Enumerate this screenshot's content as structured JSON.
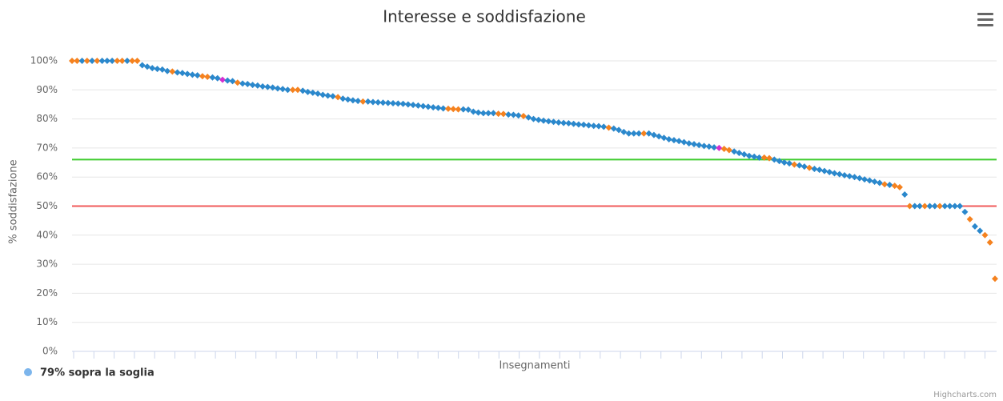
{
  "chart_data": {
    "type": "scatter",
    "title": "Interesse e soddisfazione",
    "y_label": "% soddisfazione",
    "x_label": "Insegnamenti",
    "credits": "Highcharts.com",
    "ylim": [
      0,
      100
    ],
    "yticks": [
      {
        "value": 0,
        "label": "0%"
      },
      {
        "value": 10,
        "label": "10%"
      },
      {
        "value": 20,
        "label": "20%"
      },
      {
        "value": 30,
        "label": "30%"
      },
      {
        "value": 40,
        "label": "40%"
      },
      {
        "value": 50,
        "label": "50%"
      },
      {
        "value": 60,
        "label": "60%"
      },
      {
        "value": 70,
        "label": "70%"
      },
      {
        "value": 80,
        "label": "80%"
      },
      {
        "value": 90,
        "label": "90%"
      },
      {
        "value": 100,
        "label": "100%"
      }
    ],
    "grid": true,
    "plot_lines": [
      {
        "value": 66,
        "color": "#3fcc2f"
      },
      {
        "value": 50,
        "color": "#f05a5a"
      }
    ],
    "series": [
      {
        "name": "79% sopra la soglia",
        "color": "#7cb5ec",
        "values": [
          100,
          100,
          100,
          100,
          100,
          100,
          100,
          100,
          100,
          100,
          100,
          100,
          100,
          100,
          98.5,
          98,
          97.5,
          97.2,
          97,
          96.5,
          96.3,
          96,
          95.8,
          95.5,
          95.2,
          95,
          94.7,
          94.5,
          94.3,
          94,
          93.5,
          93.2,
          93,
          92.5,
          92.2,
          92,
          91.7,
          91.5,
          91.2,
          91,
          90.8,
          90.5,
          90.3,
          90,
          90,
          90,
          89.7,
          89.3,
          89,
          88.7,
          88.3,
          88,
          87.8,
          87.5,
          87,
          86.7,
          86.4,
          86.2,
          86,
          86,
          85.8,
          85.7,
          85.6,
          85.5,
          85.4,
          85.3,
          85.2,
          85,
          84.8,
          84.6,
          84.4,
          84.2,
          84,
          83.8,
          83.6,
          83.5,
          83.4,
          83.3,
          83.3,
          83.2,
          82.5,
          82.2,
          82,
          82,
          82,
          81.8,
          81.7,
          81.5,
          81.4,
          81.2,
          81,
          80.5,
          80,
          79.7,
          79.4,
          79.2,
          79,
          78.8,
          78.6,
          78.5,
          78.3,
          78.1,
          78,
          77.8,
          77.6,
          77.5,
          77.3,
          77,
          76.7,
          76.2,
          75.5,
          75,
          75,
          75,
          75,
          75,
          74.5,
          74,
          73.5,
          73,
          72.7,
          72.4,
          72,
          71.6,
          71.3,
          71,
          70.7,
          70.5,
          70.2,
          70,
          69.7,
          69.3,
          68.8,
          68.3,
          67.8,
          67.3,
          67,
          66.7,
          66.7,
          66.5,
          66,
          65.5,
          65,
          64.7,
          64.3,
          64,
          63.6,
          63.2,
          62.8,
          62.5,
          62.1,
          61.7,
          61.3,
          61,
          60.6,
          60.3,
          60,
          59.6,
          59.2,
          58.8,
          58.4,
          58,
          57.5,
          57.3,
          57,
          56.5,
          54,
          50,
          50,
          50,
          50,
          50,
          50,
          50,
          50,
          50,
          50,
          50,
          48,
          45.5,
          43,
          41.5,
          40,
          37.5,
          25
        ],
        "point_colors": [
          "#f5821f",
          "#f5821f",
          "#2b88cc",
          "#f5821f",
          "#2b88cc",
          "#f5821f",
          "#2b88cc",
          "#2b88cc",
          "#2b88cc",
          "#f5821f",
          "#f5821f",
          "#2b88cc",
          "#f5821f",
          "#f5821f",
          "#2b88cc",
          "#2b88cc",
          "#2b88cc",
          "#2b88cc",
          "#2b88cc",
          "#2b88cc",
          "#f5821f",
          "#2b88cc",
          "#2b88cc",
          "#2b88cc",
          "#2b88cc",
          "#2b88cc",
          "#f5821f",
          "#f5821f",
          "#2b88cc",
          "#2b88cc",
          "#d42fd1",
          "#2b88cc",
          "#2b88cc",
          "#f5821f",
          "#2b88cc",
          "#2b88cc",
          "#2b88cc",
          "#2b88cc",
          "#2b88cc",
          "#2b88cc",
          "#2b88cc",
          "#2b88cc",
          "#2b88cc",
          "#2b88cc",
          "#f5821f",
          "#f5821f",
          "#2b88cc",
          "#2b88cc",
          "#2b88cc",
          "#2b88cc",
          "#2b88cc",
          "#2b88cc",
          "#2b88cc",
          "#f5821f",
          "#2b88cc",
          "#2b88cc",
          "#2b88cc",
          "#2b88cc",
          "#f5821f",
          "#2b88cc",
          "#2b88cc",
          "#2b88cc",
          "#2b88cc",
          "#2b88cc",
          "#2b88cc",
          "#2b88cc",
          "#2b88cc",
          "#2b88cc",
          "#2b88cc",
          "#2b88cc",
          "#2b88cc",
          "#2b88cc",
          "#2b88cc",
          "#2b88cc",
          "#2b88cc",
          "#f5821f",
          "#f5821f",
          "#f5821f",
          "#2b88cc",
          "#2b88cc",
          "#2b88cc",
          "#2b88cc",
          "#2b88cc",
          "#2b88cc",
          "#2b88cc",
          "#f5821f",
          "#f5821f",
          "#2b88cc",
          "#2b88cc",
          "#2b88cc",
          "#f5821f",
          "#2b88cc",
          "#2b88cc",
          "#2b88cc",
          "#2b88cc",
          "#2b88cc",
          "#2b88cc",
          "#2b88cc",
          "#2b88cc",
          "#2b88cc",
          "#2b88cc",
          "#2b88cc",
          "#2b88cc",
          "#2b88cc",
          "#2b88cc",
          "#2b88cc",
          "#2b88cc",
          "#f5821f",
          "#2b88cc",
          "#2b88cc",
          "#2b88cc",
          "#2b88cc",
          "#2b88cc",
          "#2b88cc",
          "#f5821f",
          "#2b88cc",
          "#2b88cc",
          "#2b88cc",
          "#2b88cc",
          "#2b88cc",
          "#2b88cc",
          "#2b88cc",
          "#2b88cc",
          "#2b88cc",
          "#2b88cc",
          "#2b88cc",
          "#2b88cc",
          "#2b88cc",
          "#2b88cc",
          "#d42fd1",
          "#f5821f",
          "#f5821f",
          "#2b88cc",
          "#2b88cc",
          "#2b88cc",
          "#2b88cc",
          "#2b88cc",
          "#2b88cc",
          "#f5821f",
          "#f5821f",
          "#2b88cc",
          "#2b88cc",
          "#2b88cc",
          "#2b88cc",
          "#f5821f",
          "#2b88cc",
          "#2b88cc",
          "#f5821f",
          "#2b88cc",
          "#2b88cc",
          "#2b88cc",
          "#2b88cc",
          "#2b88cc",
          "#2b88cc",
          "#2b88cc",
          "#2b88cc",
          "#2b88cc",
          "#2b88cc",
          "#2b88cc",
          "#2b88cc",
          "#2b88cc",
          "#2b88cc",
          "#f5821f",
          "#2b88cc",
          "#f5821f",
          "#f5821f",
          "#2b88cc",
          "#f5821f",
          "#2b88cc",
          "#2b88cc",
          "#f5821f",
          "#2b88cc",
          "#2b88cc",
          "#f5821f",
          "#2b88cc",
          "#2b88cc",
          "#2b88cc",
          "#2b88cc",
          "#2b88cc",
          "#f5821f",
          "#2b88cc",
          "#2b88cc",
          "#f5821f",
          "#f5821f",
          "#f5821f"
        ]
      }
    ]
  }
}
